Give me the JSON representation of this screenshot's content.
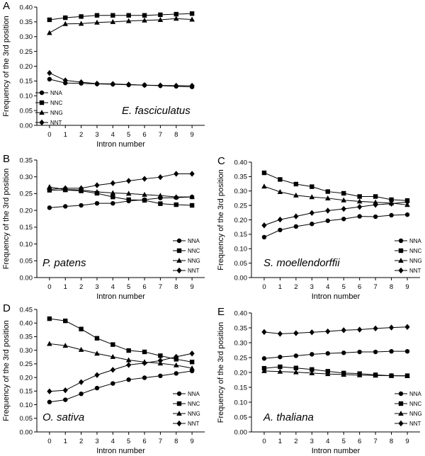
{
  "chart_data": [
    {
      "type": "line",
      "panel_label": "A",
      "species": "E. fasciculatus",
      "xlabel": "Intron number",
      "ylabel": "Frequency of the 3rd position",
      "x": [
        0,
        1,
        2,
        3,
        4,
        5,
        6,
        7,
        8,
        9
      ],
      "ylim": [
        0,
        0.4
      ],
      "yticks": [
        "0.00",
        "0.05",
        "0.10",
        "0.15",
        "0.20",
        "0.25",
        "0.30",
        "0.35",
        "0.40"
      ],
      "legend_position": "bottom-left",
      "series": [
        {
          "name": "NNA",
          "marker": "circle",
          "values": [
            0.156,
            0.143,
            0.142,
            0.14,
            0.139,
            0.137,
            0.136,
            0.134,
            0.132,
            0.13
          ]
        },
        {
          "name": "NNC",
          "marker": "square",
          "values": [
            0.357,
            0.364,
            0.368,
            0.372,
            0.372,
            0.372,
            0.372,
            0.374,
            0.376,
            0.378
          ]
        },
        {
          "name": "NNG",
          "marker": "triangle",
          "values": [
            0.313,
            0.343,
            0.344,
            0.348,
            0.35,
            0.353,
            0.355,
            0.357,
            0.361,
            0.358
          ]
        },
        {
          "name": "NNT",
          "marker": "diamond",
          "values": [
            0.177,
            0.152,
            0.146,
            0.141,
            0.14,
            0.138,
            0.136,
            0.135,
            0.134,
            0.134
          ]
        }
      ]
    },
    {
      "type": "line",
      "panel_label": "B",
      "species": "P. patens",
      "xlabel": "Intron number",
      "ylabel": "Frequency of the 3rd position",
      "x": [
        0,
        1,
        2,
        3,
        4,
        5,
        6,
        7,
        8,
        9
      ],
      "ylim": [
        0,
        0.35
      ],
      "yticks": [
        "0.00",
        "0.05",
        "0.10",
        "0.15",
        "0.20",
        "0.25",
        "0.30",
        "0.35"
      ],
      "legend_position": "bottom-right",
      "series": [
        {
          "name": "NNA",
          "marker": "circle",
          "values": [
            0.208,
            0.212,
            0.215,
            0.221,
            0.221,
            0.228,
            0.232,
            0.237,
            0.238,
            0.24
          ]
        },
        {
          "name": "NNC",
          "marker": "square",
          "values": [
            0.26,
            0.261,
            0.258,
            0.251,
            0.24,
            0.232,
            0.23,
            0.22,
            0.217,
            0.215
          ]
        },
        {
          "name": "NNG",
          "marker": "triangle",
          "values": [
            0.27,
            0.262,
            0.261,
            0.255,
            0.252,
            0.25,
            0.247,
            0.244,
            0.24,
            0.24
          ]
        },
        {
          "name": "NNT",
          "marker": "diamond",
          "values": [
            0.263,
            0.266,
            0.266,
            0.275,
            0.281,
            0.288,
            0.294,
            0.299,
            0.309,
            0.309
          ]
        }
      ]
    },
    {
      "type": "line",
      "panel_label": "C",
      "species": "S. moellendorffii",
      "xlabel": "Intron number",
      "ylabel": "Frequency of the 3rd position",
      "x": [
        0,
        1,
        2,
        3,
        4,
        5,
        6,
        7,
        8,
        9
      ],
      "ylim": [
        0,
        0.4
      ],
      "yticks": [
        "0.00",
        "0.05",
        "0.10",
        "0.15",
        "0.20",
        "0.25",
        "0.30",
        "0.35",
        "0.40"
      ],
      "legend_position": "bottom-right",
      "series": [
        {
          "name": "NNA",
          "marker": "circle",
          "values": [
            0.14,
            0.165,
            0.177,
            0.186,
            0.197,
            0.203,
            0.212,
            0.211,
            0.216,
            0.218
          ]
        },
        {
          "name": "NNC",
          "marker": "square",
          "values": [
            0.363,
            0.34,
            0.324,
            0.315,
            0.298,
            0.292,
            0.281,
            0.281,
            0.27,
            0.267
          ]
        },
        {
          "name": "NNG",
          "marker": "triangle",
          "values": [
            0.316,
            0.297,
            0.285,
            0.279,
            0.275,
            0.268,
            0.264,
            0.261,
            0.258,
            0.252
          ]
        },
        {
          "name": "NNT",
          "marker": "diamond",
          "values": [
            0.181,
            0.201,
            0.212,
            0.224,
            0.232,
            0.238,
            0.245,
            0.252,
            0.256,
            0.262
          ]
        }
      ]
    },
    {
      "type": "line",
      "panel_label": "D",
      "species": "O. sativa",
      "xlabel": "Intron number",
      "ylabel": "Frequency of the 3rd position",
      "x": [
        0,
        1,
        2,
        3,
        4,
        5,
        6,
        7,
        8,
        9
      ],
      "ylim": [
        0,
        0.45
      ],
      "yticks": [
        "0.00",
        "0.05",
        "0.10",
        "0.15",
        "0.20",
        "0.25",
        "0.30",
        "0.35",
        "0.40",
        "0.45"
      ],
      "legend_position": "bottom-right",
      "series": [
        {
          "name": "NNA",
          "marker": "circle",
          "values": [
            0.11,
            0.118,
            0.14,
            0.161,
            0.178,
            0.192,
            0.199,
            0.206,
            0.215,
            0.224
          ]
        },
        {
          "name": "NNC",
          "marker": "square",
          "values": [
            0.416,
            0.408,
            0.378,
            0.344,
            0.321,
            0.299,
            0.294,
            0.28,
            0.267,
            0.257
          ]
        },
        {
          "name": "NNG",
          "marker": "triangle",
          "values": [
            0.324,
            0.317,
            0.302,
            0.288,
            0.276,
            0.264,
            0.257,
            0.252,
            0.245,
            0.234
          ]
        },
        {
          "name": "NNT",
          "marker": "diamond",
          "values": [
            0.149,
            0.153,
            0.183,
            0.209,
            0.228,
            0.246,
            0.253,
            0.262,
            0.276,
            0.288
          ]
        }
      ]
    },
    {
      "type": "line",
      "panel_label": "E",
      "species": "A. thaliana",
      "xlabel": "Intron number",
      "ylabel": "Frequency of the 3rd position",
      "x": [
        0,
        1,
        2,
        3,
        4,
        5,
        6,
        7,
        8,
        9
      ],
      "ylim": [
        0,
        0.4
      ],
      "yticks": [
        "0.00",
        "0.05",
        "0.10",
        "0.15",
        "0.20",
        "0.25",
        "0.30",
        "0.35",
        "0.40"
      ],
      "legend_position": "bottom-right",
      "series": [
        {
          "name": "NNA",
          "marker": "circle",
          "values": [
            0.247,
            0.252,
            0.256,
            0.261,
            0.264,
            0.266,
            0.269,
            0.269,
            0.271,
            0.271
          ]
        },
        {
          "name": "NNC",
          "marker": "square",
          "values": [
            0.214,
            0.219,
            0.215,
            0.21,
            0.204,
            0.198,
            0.196,
            0.192,
            0.189,
            0.189
          ]
        },
        {
          "name": "NNG",
          "marker": "triangle",
          "values": [
            0.205,
            0.203,
            0.201,
            0.198,
            0.195,
            0.193,
            0.191,
            0.19,
            0.189,
            0.188
          ]
        },
        {
          "name": "NNT",
          "marker": "diamond",
          "values": [
            0.336,
            0.33,
            0.332,
            0.335,
            0.338,
            0.342,
            0.344,
            0.348,
            0.351,
            0.353
          ]
        }
      ]
    }
  ]
}
